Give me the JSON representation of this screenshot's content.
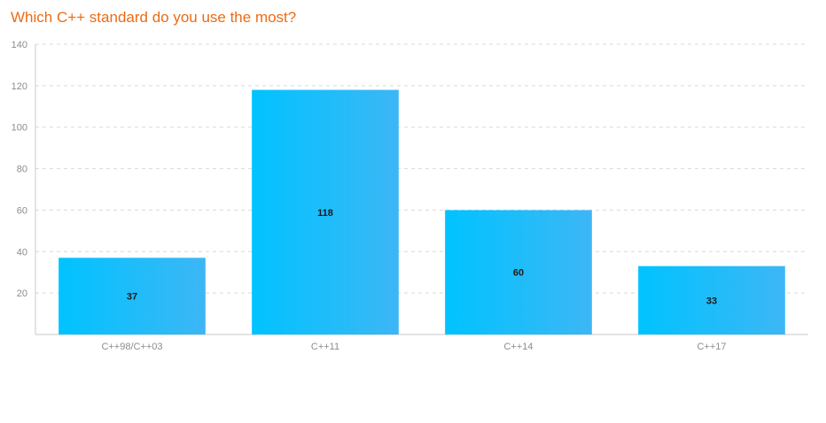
{
  "chart_data": {
    "type": "bar",
    "title": "Which C++ standard do you use the most?",
    "categories": [
      "C++98/C++03",
      "C++11",
      "C++14",
      "C++17"
    ],
    "values": [
      37,
      118,
      60,
      33
    ],
    "data_labels": [
      "37",
      "118",
      "60",
      "33"
    ],
    "ylim": [
      0,
      140
    ],
    "y_ticks": [
      20,
      40,
      60,
      80,
      100,
      120,
      140
    ],
    "grid": true,
    "legend": "none",
    "colors": {
      "title": "#ec6b14",
      "bar_start": "#00c3ff",
      "bar_end": "#3db6f5",
      "grid": "#d9d9d9",
      "axis": "#c8c8c8",
      "tick_text": "#8c8c8c"
    }
  }
}
